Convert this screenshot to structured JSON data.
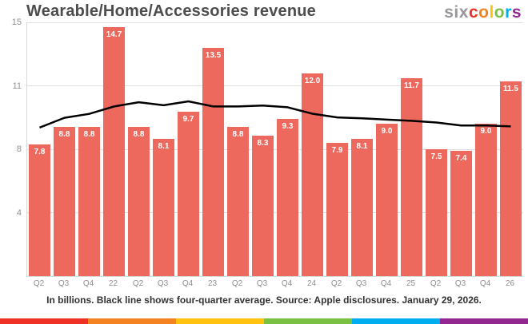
{
  "header": {
    "title": "Wearable/Home/Accessories revenue",
    "logo": {
      "prefix": "six",
      "prefix_color": "#97979b",
      "letters": [
        {
          "ch": "c",
          "color": "#ee3124"
        },
        {
          "ch": "o",
          "color": "#f58220"
        },
        {
          "ch": "l",
          "color": "#ffc20e"
        },
        {
          "ch": "o",
          "color": "#7ac143"
        },
        {
          "ch": "r",
          "color": "#00aeef"
        },
        {
          "ch": "s",
          "color": "#92278f"
        }
      ]
    }
  },
  "footer": {
    "caption": "In billions. Black line shows four-quarter average. Source: Apple disclosures. January 29, 2026.",
    "stripe_colors": [
      "#ee3124",
      "#f58220",
      "#ffc20e",
      "#7ac143",
      "#00aeef",
      "#92278f"
    ]
  },
  "style": {
    "bar_color": "#ed695e",
    "bar_label_color": "#ffffff",
    "line_color": "#000000",
    "grid_color": "#dedede",
    "axis_label_color": "#8f8f8f",
    "title_color": "#4c4c4c"
  },
  "chart_data": {
    "type": "bar",
    "title": "Wearable/Home/Accessories revenue",
    "categories": [
      "Q2",
      "Q3",
      "Q4",
      "22",
      "Q2",
      "Q3",
      "Q4",
      "23",
      "Q2",
      "Q3",
      "Q4",
      "24",
      "Q2",
      "Q3",
      "Q4",
      "25",
      "Q2",
      "Q3",
      "Q4",
      "26"
    ],
    "series": [
      {
        "name": "Quarterly revenue ($B)",
        "type": "bar",
        "values": [
          7.8,
          8.8,
          8.8,
          14.7,
          8.8,
          8.1,
          9.7,
          13.5,
          8.8,
          8.3,
          9.3,
          12.0,
          7.9,
          8.1,
          9.0,
          11.7,
          7.5,
          7.4,
          9.0,
          11.5
        ]
      },
      {
        "name": "Four-quarter average",
        "type": "line",
        "values": [
          8.78,
          9.36,
          9.59,
          10.03,
          10.28,
          10.1,
          10.33,
          10.03,
          10.03,
          10.08,
          9.98,
          9.6,
          9.38,
          9.33,
          9.25,
          9.18,
          9.08,
          8.9,
          8.9,
          8.85
        ]
      }
    ],
    "ylim": [
      0,
      15
    ],
    "yticks": [
      {
        "value": 3.75,
        "label": "4"
      },
      {
        "value": 7.5,
        "label": "8"
      },
      {
        "value": 11.25,
        "label": "11"
      },
      {
        "value": 15,
        "label": "15"
      }
    ],
    "grid": true,
    "legend": "none",
    "value_label_format": "one-decimal-inside-top",
    "xlabel": "",
    "ylabel": ""
  }
}
